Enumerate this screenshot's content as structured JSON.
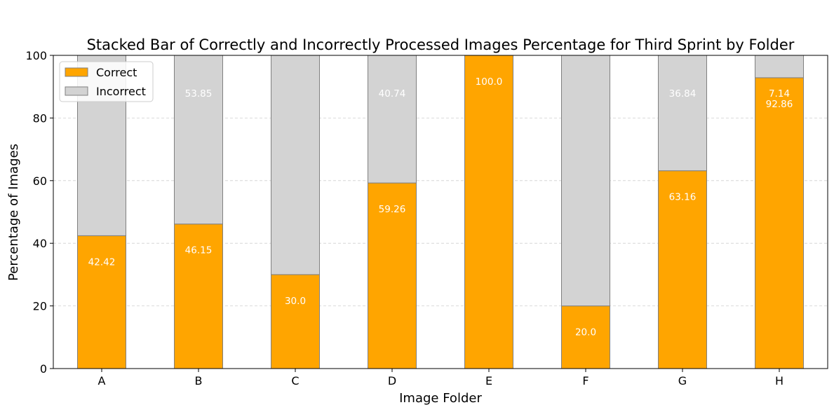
{
  "chart_data": {
    "type": "bar",
    "stacked": true,
    "title": "Stacked Bar of Correctly and Incorrectly Processed Images Percentage for Third Sprint by Folder",
    "xlabel": "Image Folder",
    "ylabel": "Percentage of Images",
    "categories": [
      "A",
      "B",
      "C",
      "D",
      "E",
      "F",
      "G",
      "H"
    ],
    "ylim": [
      0,
      100
    ],
    "yticks": [
      0,
      20,
      40,
      60,
      80,
      100
    ],
    "grid": "horizontal dashed",
    "legend_position": "top-left",
    "series": [
      {
        "name": "Correct",
        "color": "#FFA500",
        "values": [
          42.42,
          46.15,
          30.0,
          59.26,
          100.0,
          20.0,
          63.16,
          92.86
        ],
        "labels": [
          "42.42",
          "46.15",
          "30.0",
          "59.26",
          "100.0",
          "20.0",
          "63.16",
          "92.86"
        ]
      },
      {
        "name": "Incorrect",
        "color": "#D3D3D3",
        "values": [
          57.58,
          53.85,
          70.0,
          40.74,
          0.0,
          80.0,
          36.84,
          7.14
        ],
        "labels": [
          "",
          "53.85",
          "",
          "40.74",
          "",
          "",
          "36.84",
          "7.14"
        ]
      }
    ]
  }
}
